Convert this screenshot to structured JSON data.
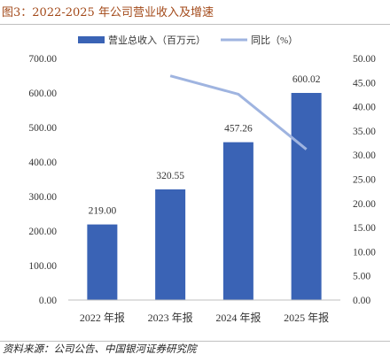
{
  "header": {
    "title": "图3：2022-2025 年公司营业收入及增速"
  },
  "footer": {
    "source": "资料来源：公司公告、中国银河证券研究院"
  },
  "colors": {
    "bar": "#3a63b5",
    "line": "#9fb4e0",
    "title": "#a34a1a"
  },
  "chart_data": {
    "type": "bar",
    "categories": [
      "2022 年报",
      "2023 年报",
      "2024 年报",
      "2025 年报"
    ],
    "series": [
      {
        "name": "营业总收入（百万元）",
        "type": "bar",
        "axis": "left",
        "values": [
          219.0,
          320.55,
          457.26,
          600.02
        ],
        "labels": [
          "219.00",
          "320.55",
          "457.26",
          "600.02"
        ]
      },
      {
        "name": "同比（%）",
        "type": "line",
        "axis": "right",
        "values": [
          null,
          46.4,
          42.6,
          31.2
        ]
      }
    ],
    "y_left": {
      "lim": [
        0,
        700
      ],
      "ticks": [
        "0.00",
        "100.00",
        "200.00",
        "300.00",
        "400.00",
        "500.00",
        "600.00",
        "700.00"
      ]
    },
    "y_right": {
      "lim": [
        0,
        50
      ],
      "ticks": [
        "0.00",
        "5.00",
        "10.00",
        "15.00",
        "20.00",
        "25.00",
        "30.00",
        "35.00",
        "40.00",
        "45.00",
        "50.00"
      ]
    },
    "legend": "top",
    "grid": false
  }
}
